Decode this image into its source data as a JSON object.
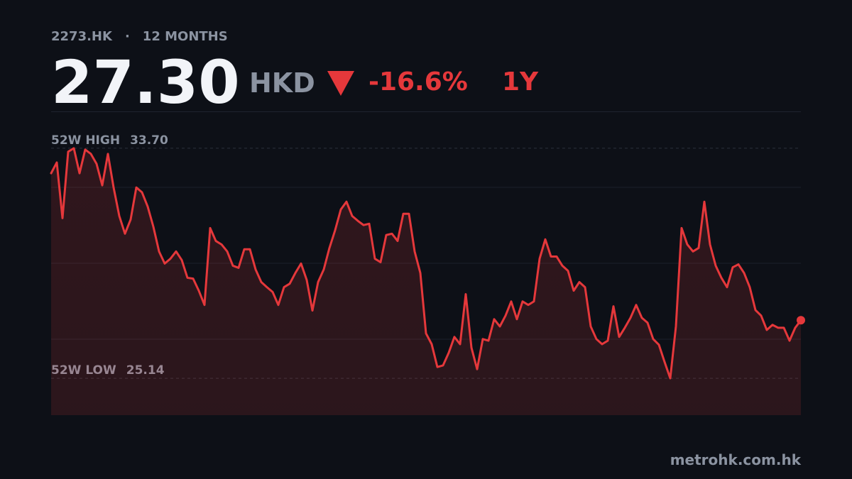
{
  "header": {
    "ticker": "2273.HK",
    "separator": "·",
    "period": "12 MONTHS",
    "price": "27.30",
    "currency": "HKD",
    "change": "-16.6%",
    "change_period": "1Y"
  },
  "chart_data": {
    "type": "line",
    "color": "#e5383b",
    "values": [
      32.77,
      33.17,
      31.1,
      33.57,
      33.7,
      32.77,
      33.65,
      33.49,
      33.12,
      32.32,
      33.49,
      32.24,
      31.18,
      30.52,
      31.05,
      32.24,
      32.06,
      31.53,
      30.78,
      29.86,
      29.41,
      29.59,
      29.86,
      29.54,
      28.88,
      28.85,
      28.4,
      27.87,
      30.73,
      30.25,
      30.12,
      29.86,
      29.33,
      29.25,
      29.94,
      29.94,
      29.19,
      28.72,
      28.53,
      28.35,
      27.87,
      28.53,
      28.66,
      29.06,
      29.41,
      28.8,
      27.66,
      28.72,
      29.19,
      29.99,
      30.65,
      31.42,
      31.71,
      31.18,
      31.0,
      30.84,
      30.89,
      29.59,
      29.46,
      30.47,
      30.52,
      30.25,
      31.26,
      31.26,
      29.86,
      29.06,
      26.81,
      26.41,
      25.56,
      25.62,
      26.09,
      26.68,
      26.41,
      28.27,
      26.28,
      25.48,
      26.6,
      26.54,
      27.34,
      27.07,
      27.47,
      28.0,
      27.34,
      28.0,
      27.87,
      28.0,
      29.59,
      30.31,
      29.67,
      29.67,
      29.33,
      29.14,
      28.4,
      28.72,
      28.53,
      27.07,
      26.6,
      26.41,
      26.54,
      27.82,
      26.68,
      27.02,
      27.39,
      27.87,
      27.39,
      27.21,
      26.6,
      26.39,
      25.75,
      25.14,
      27.07,
      30.73,
      30.12,
      29.86,
      29.99,
      31.71,
      30.12,
      29.33,
      28.88,
      28.53,
      29.27,
      29.38,
      29.06,
      28.53,
      27.68,
      27.47,
      26.94,
      27.13,
      27.02,
      27.02,
      26.54,
      27.02,
      27.3
    ],
    "ylim": [
      23.77,
      35.07
    ],
    "annotations": [
      {
        "label": "52W HIGH",
        "value": 33.7,
        "value_label": "33.70"
      },
      {
        "label": "52W LOW",
        "value": 25.14,
        "value_label": "25.14"
      }
    ]
  },
  "footer": "metrohk.com.hk"
}
